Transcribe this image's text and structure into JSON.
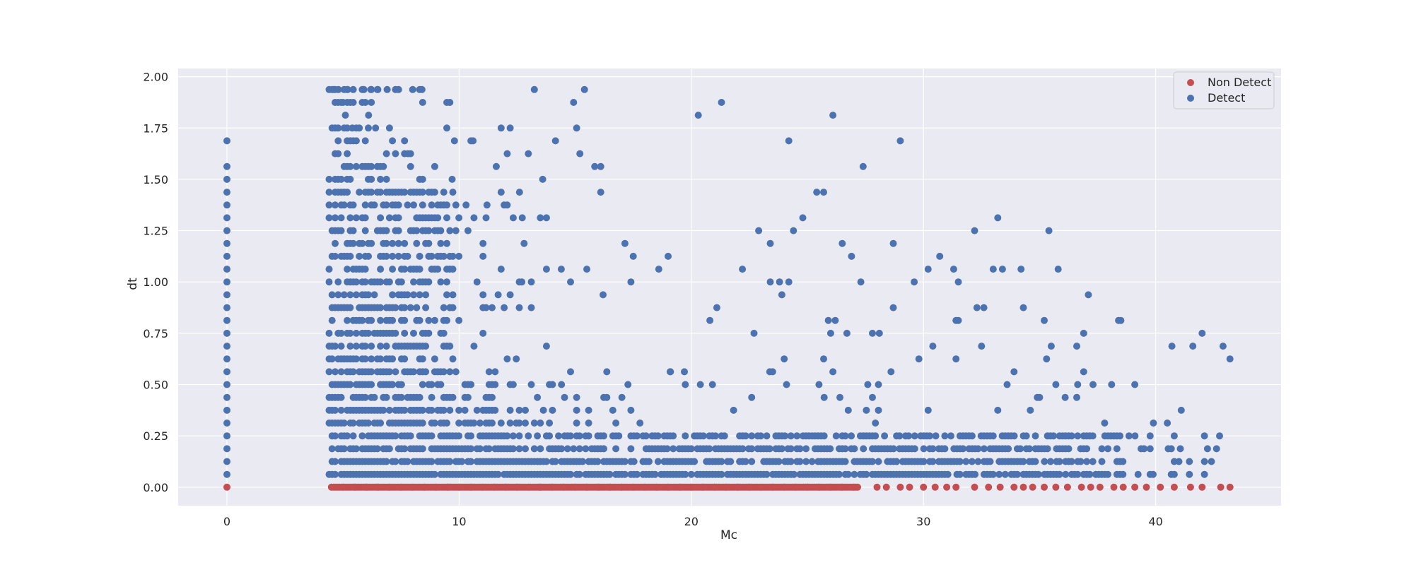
{
  "chart_data": {
    "type": "scatter",
    "title": "",
    "xlabel": "Mc",
    "ylabel": "dt",
    "xlim": [
      -2.1,
      45.4
    ],
    "ylim": [
      -0.09,
      2.04
    ],
    "xticks": [
      0,
      10,
      20,
      30,
      40
    ],
    "yticks": [
      0.0,
      0.25,
      0.5,
      0.75,
      1.0,
      1.25,
      1.5,
      1.75,
      2.0
    ],
    "xtick_labels": [
      "0",
      "10",
      "20",
      "30",
      "40"
    ],
    "ytick_labels": [
      "0.00",
      "0.25",
      "0.50",
      "0.75",
      "1.00",
      "1.25",
      "1.50",
      "1.75",
      "2.00"
    ],
    "grid": true,
    "legend_position": "top-right",
    "background": "#eaeaf2",
    "series": [
      {
        "name": "Non Detect",
        "color": "#c44e52",
        "points": [
          [
            0,
            0
          ],
          [
            4.5,
            0
          ],
          [
            5,
            0
          ],
          [
            5.5,
            0
          ],
          [
            6,
            0
          ],
          [
            6.5,
            0
          ],
          [
            7,
            0
          ],
          [
            7.5,
            0
          ],
          [
            8,
            0
          ],
          [
            8.5,
            0
          ],
          [
            9,
            0
          ],
          [
            9.5,
            0
          ],
          [
            10,
            0
          ],
          [
            10.5,
            0
          ],
          [
            11,
            0
          ],
          [
            11.5,
            0
          ],
          [
            12,
            0
          ],
          [
            12.5,
            0
          ],
          [
            13,
            0
          ],
          [
            13.5,
            0
          ],
          [
            14,
            0
          ],
          [
            14.5,
            0
          ],
          [
            15,
            0
          ],
          [
            15.5,
            0
          ],
          [
            16,
            0
          ],
          [
            16.5,
            0
          ],
          [
            17,
            0
          ],
          [
            17.5,
            0
          ],
          [
            18,
            0
          ],
          [
            18.5,
            0
          ],
          [
            19,
            0
          ],
          [
            19.5,
            0
          ],
          [
            20,
            0
          ],
          [
            20.5,
            0
          ],
          [
            21,
            0
          ],
          [
            21.5,
            0
          ],
          [
            22,
            0
          ],
          [
            22.5,
            0
          ],
          [
            23,
            0
          ],
          [
            23.5,
            0
          ],
          [
            24,
            0
          ],
          [
            24.5,
            0
          ],
          [
            25,
            0
          ],
          [
            25.5,
            0
          ],
          [
            26,
            0
          ],
          [
            26.5,
            0
          ],
          [
            27,
            0
          ],
          [
            28,
            0
          ],
          [
            28.4,
            0
          ],
          [
            29,
            0
          ],
          [
            29.4,
            0
          ],
          [
            30,
            0
          ],
          [
            30.5,
            0
          ],
          [
            31,
            0
          ],
          [
            31.4,
            0
          ],
          [
            32.2,
            0
          ],
          [
            32.8,
            0
          ],
          [
            33.3,
            0
          ],
          [
            33.9,
            0
          ],
          [
            34.3,
            0
          ],
          [
            34.7,
            0
          ],
          [
            35.2,
            0
          ],
          [
            35.7,
            0
          ],
          [
            36.2,
            0
          ],
          [
            36.8,
            0
          ],
          [
            37.2,
            0
          ],
          [
            37.6,
            0
          ],
          [
            38.2,
            0
          ],
          [
            38.6,
            0
          ],
          [
            39.1,
            0
          ],
          [
            39.6,
            0
          ],
          [
            40.2,
            0
          ],
          [
            40.8,
            0
          ],
          [
            41.5,
            0
          ],
          [
            42,
            0
          ],
          [
            42.8,
            0
          ],
          [
            43.2,
            0
          ]
        ]
      },
      {
        "name": "Detect",
        "color": "#4c72b0",
        "points": [
          [
            0,
            0.0625
          ],
          [
            0,
            0.125
          ],
          [
            0,
            0.1875
          ],
          [
            0,
            0.25
          ],
          [
            0,
            0.3125
          ],
          [
            0,
            0.375
          ],
          [
            0,
            0.4375
          ],
          [
            0,
            0.5
          ],
          [
            0,
            0.5625
          ],
          [
            0,
            0.625
          ],
          [
            0,
            0.6875
          ],
          [
            0,
            0.75
          ],
          [
            0,
            0.8125
          ],
          [
            0,
            0.875
          ],
          [
            0,
            0.9375
          ],
          [
            0,
            1.0
          ],
          [
            0,
            1.0625
          ],
          [
            0,
            1.125
          ],
          [
            0,
            1.1875
          ],
          [
            0,
            1.25
          ],
          [
            0,
            1.3125
          ],
          [
            0,
            1.375
          ],
          [
            0,
            1.4375
          ],
          [
            0,
            1.5
          ],
          [
            0,
            1.5625
          ],
          [
            0,
            1.6875
          ],
          [
            4.6,
            1.9375
          ],
          [
            4.8,
            1.9375
          ],
          [
            5.2,
            1.9375
          ],
          [
            5.9,
            1.9375
          ],
          [
            6.2,
            1.9375
          ],
          [
            6.5,
            1.9375
          ],
          [
            6.9,
            1.9375
          ],
          [
            8.0,
            1.9375
          ],
          [
            8.4,
            1.9375
          ],
          [
            15.4,
            1.9375
          ],
          [
            5.0,
            1.875
          ],
          [
            9.6,
            1.875
          ],
          [
            5.1,
            1.8125
          ],
          [
            6.1,
            1.8125
          ],
          [
            20.3,
            1.8125
          ],
          [
            26.1,
            1.8125
          ],
          [
            5.4,
            1.75
          ],
          [
            6.4,
            1.75
          ],
          [
            9.8,
            1.6875
          ],
          [
            10.6,
            1.6875
          ],
          [
            24.2,
            1.6875
          ],
          [
            29.0,
            1.6875
          ],
          [
            7.8,
            1.625
          ],
          [
            15.2,
            1.625
          ],
          [
            11.6,
            1.5625
          ],
          [
            27.4,
            1.5625
          ],
          [
            9.7,
            1.5
          ],
          [
            13.6,
            1.5
          ],
          [
            12.6,
            1.4375
          ],
          [
            25.4,
            1.4375
          ],
          [
            25.7,
            1.4375
          ],
          [
            11.2,
            1.375
          ],
          [
            10.3,
            1.375
          ],
          [
            24.8,
            1.3125
          ],
          [
            33.2,
            1.3125
          ],
          [
            12.8,
            1.1875
          ],
          [
            23.4,
            1.1875
          ],
          [
            26.5,
            1.1875
          ],
          [
            28.7,
            1.1875
          ],
          [
            22.9,
            1.25
          ],
          [
            24.4,
            1.25
          ],
          [
            32.2,
            1.25
          ],
          [
            35.4,
            1.25
          ],
          [
            17.5,
            1.125
          ],
          [
            19.0,
            1.125
          ],
          [
            26.9,
            1.125
          ],
          [
            30.7,
            1.125
          ],
          [
            18.6,
            1.0625
          ],
          [
            22.2,
            1.0625
          ],
          [
            14.4,
            1.0625
          ],
          [
            15.5,
            1.0625
          ],
          [
            30.2,
            1.0625
          ],
          [
            31.3,
            1.0625
          ],
          [
            33.0,
            1.0625
          ],
          [
            33.4,
            1.0625
          ],
          [
            34.2,
            1.0625
          ],
          [
            35.8,
            1.0625
          ],
          [
            12.7,
            1.0
          ],
          [
            14.8,
            1.0
          ],
          [
            23.4,
            1.0
          ],
          [
            23.8,
            1.0
          ],
          [
            24.2,
            1.0
          ],
          [
            27.3,
            1.0
          ],
          [
            29.6,
            1.0
          ],
          [
            31.5,
            1.0
          ],
          [
            16.2,
            0.9375
          ],
          [
            37.1,
            0.9375
          ],
          [
            21.1,
            0.875
          ],
          [
            28.7,
            0.875
          ],
          [
            34.3,
            0.875
          ],
          [
            32.3,
            0.875
          ],
          [
            32.6,
            0.875
          ],
          [
            20.8,
            0.8125
          ],
          [
            25.9,
            0.8125
          ],
          [
            26.2,
            0.8125
          ],
          [
            31.4,
            0.8125
          ],
          [
            31.5,
            0.8125
          ],
          [
            35.2,
            0.8125
          ],
          [
            38.4,
            0.8125
          ],
          [
            38.5,
            0.8125
          ],
          [
            22.7,
            0.75
          ],
          [
            26.0,
            0.75
          ],
          [
            26.7,
            0.75
          ],
          [
            27.8,
            0.75
          ],
          [
            28.1,
            0.75
          ],
          [
            36.9,
            0.75
          ],
          [
            42.0,
            0.75
          ],
          [
            30.4,
            0.6875
          ],
          [
            32.5,
            0.6875
          ],
          [
            35.5,
            0.6875
          ],
          [
            36.6,
            0.6875
          ],
          [
            40.7,
            0.6875
          ],
          [
            41.6,
            0.6875
          ],
          [
            42.9,
            0.6875
          ],
          [
            24.0,
            0.625
          ],
          [
            25.7,
            0.625
          ],
          [
            29.8,
            0.625
          ],
          [
            31.4,
            0.625
          ],
          [
            35.3,
            0.625
          ],
          [
            43.2,
            0.625
          ],
          [
            23.5,
            0.5625
          ],
          [
            26.1,
            0.5625
          ],
          [
            28.6,
            0.5625
          ],
          [
            33.9,
            0.5625
          ],
          [
            36.9,
            0.5625
          ],
          [
            19.1,
            0.5625
          ],
          [
            19.7,
            0.5625
          ],
          [
            24.1,
            0.5
          ],
          [
            25.5,
            0.5
          ],
          [
            27.6,
            0.5
          ],
          [
            33.6,
            0.5
          ],
          [
            35.7,
            0.5
          ],
          [
            37.3,
            0.5
          ],
          [
            38.1,
            0.5
          ],
          [
            39.1,
            0.5
          ],
          [
            34.9,
            0.4375
          ],
          [
            36.6,
            0.4375
          ],
          [
            36.1,
            0.4375
          ],
          [
            35.0,
            0.4375
          ],
          [
            26.4,
            0.4375
          ],
          [
            34.6,
            0.375
          ],
          [
            41.1,
            0.375
          ],
          [
            30.2,
            0.375
          ],
          [
            33.2,
            0.375
          ],
          [
            39.9,
            0.3125
          ],
          [
            40.5,
            0.3125
          ],
          [
            37.8,
            0.3125
          ],
          [
            41.0,
            0.125
          ],
          [
            40.8,
            0.0625
          ],
          [
            42.4,
            0.125
          ],
          [
            42.1,
            0.125
          ]
        ],
        "dense_band": {
          "note": "",
          "levels": [
            0.0625,
            0.125,
            0.1875,
            0.25,
            0.3125,
            0.375,
            0.4375,
            0.5,
            0.5625,
            0.625,
            0.6875,
            0.75,
            0.8125,
            0.875,
            0.9375,
            1.0,
            1.0625,
            1.125,
            1.1875,
            1.25,
            1.3125,
            1.375,
            1.4375,
            1.5,
            1.5625,
            1.625,
            1.6875,
            1.75,
            1.875,
            1.9375
          ]
        }
      }
    ]
  }
}
